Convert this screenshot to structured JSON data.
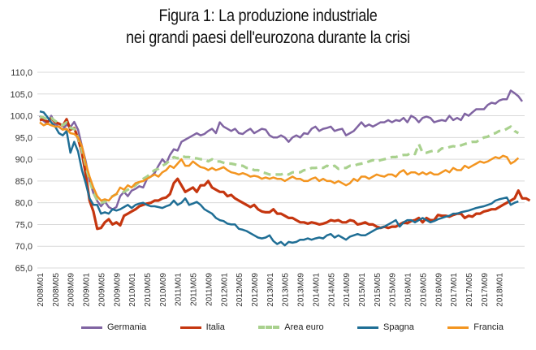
{
  "header": {
    "title_line1": "Figura 1: La produzione industriale",
    "title_line2": "nei grandi paesi dell'eurozona durante la crisi"
  },
  "chart_data": {
    "type": "line",
    "title": "Figura 1: La produzione industriale nei grandi paesi dell'eurozona durante la crisi",
    "xlabel": "",
    "ylabel": "",
    "ylim": [
      65,
      110
    ],
    "yticks": [
      "65,0",
      "70,0",
      "75,0",
      "80,0",
      "85,0",
      "90,0",
      "95,0",
      "100,0",
      "105,0",
      "110,0"
    ],
    "grid": "horizontal",
    "legend_position": "bottom",
    "x_start": "2008M01",
    "x_end": "2018M03",
    "x_tick_labels": [
      "2008M01",
      "2008M05",
      "2008M09",
      "2009M01",
      "2009M05",
      "2009M09",
      "2010M01",
      "2010M05",
      "2010M09",
      "2011M01",
      "2011M05",
      "2011M09",
      "2012M01",
      "2012M05",
      "2012M09",
      "2013M01",
      "2013M05",
      "2013M09",
      "2014M01",
      "2014M05",
      "2014M09",
      "2015M01",
      "2015M05",
      "2015M09",
      "2016M01",
      "2016M05",
      "2016M09",
      "2017M01",
      "2017M05",
      "2017M09",
      "2018M01"
    ],
    "x_tick_index": [
      0,
      4,
      8,
      12,
      16,
      20,
      24,
      28,
      32,
      36,
      40,
      44,
      48,
      52,
      56,
      60,
      64,
      68,
      72,
      76,
      80,
      84,
      88,
      92,
      96,
      100,
      104,
      108,
      112,
      116,
      120
    ],
    "series": [
      {
        "name": "Germania",
        "color": "#8064a2",
        "dash": false,
        "values": [
          100,
          98.8,
          98.2,
          100,
          98.2,
          97.4,
          96.8,
          98,
          97.4,
          98.6,
          96.8,
          93,
          89.5,
          85,
          82.2,
          80.4,
          79.2,
          80.3,
          79,
          78.5,
          79,
          81.5,
          82.5,
          81.5,
          82.8,
          83.2,
          83.8,
          83.5,
          85.5,
          86,
          86.8,
          88.5,
          90,
          89,
          91,
          92.3,
          92,
          94,
          94.5,
          95,
          95.5,
          96,
          95.5,
          95.8,
          96.5,
          97,
          96,
          98.5,
          97.5,
          97,
          96.5,
          97,
          96,
          95.8,
          96.5,
          97,
          96,
          96.5,
          97,
          96.8,
          95.5,
          95,
          95,
          95.5,
          95,
          94,
          95,
          95.5,
          95,
          96,
          95.8,
          97,
          97.5,
          96.5,
          97,
          97.2,
          97.5,
          96.5,
          96.8,
          97,
          95.5,
          96,
          96.5,
          97.5,
          98.5,
          97.5,
          98,
          97.5,
          98,
          98.5,
          98.5,
          99,
          98.5,
          99,
          98.8,
          99.5,
          98.5,
          100,
          99.5,
          98.5,
          99.5,
          99.8,
          99.5,
          98.5,
          98.8,
          99,
          98.8,
          100,
          99,
          99.5,
          99,
          100.5,
          100,
          100.8,
          101.5,
          101.5,
          101.5,
          102.5,
          103,
          102.8,
          103.5,
          103.8,
          103.8,
          105.8,
          105.2,
          104.5,
          103.3
        ]
      },
      {
        "name": "Italia",
        "color": "#c5360f",
        "dash": false,
        "values": [
          99,
          99.2,
          98.6,
          99.4,
          98.5,
          98.2,
          97.7,
          99.2,
          96.8,
          97.2,
          94.8,
          91.5,
          86.5,
          80.5,
          78,
          74,
          74.2,
          75.5,
          76.2,
          75,
          75.5,
          74.8,
          77,
          77.5,
          78,
          78.5,
          79.2,
          79.5,
          79.8,
          80,
          80.5,
          80.5,
          81,
          81.2,
          82,
          84.5,
          85.5,
          84,
          82.5,
          83,
          83.5,
          82.5,
          84,
          84,
          85,
          83.5,
          83,
          82.5,
          82.5,
          81.5,
          81.8,
          81,
          80.5,
          80,
          79.5,
          79,
          79.5,
          78.5,
          78,
          77.8,
          77.8,
          78.5,
          77.5,
          77.5,
          77,
          76.5,
          76.5,
          76,
          75.5,
          75.5,
          75.2,
          75.5,
          75.3,
          75,
          75.2,
          75.5,
          76,
          75.8,
          76,
          75.5,
          75.5,
          76,
          75.8,
          75,
          75.2,
          75.5,
          75,
          75,
          74.5,
          74.2,
          74.5,
          74.2,
          74.5,
          74.5,
          75,
          75.5,
          75.3,
          75.8,
          76,
          76.5,
          75.5,
          76.5,
          76,
          76,
          77.2,
          77,
          77,
          76.8,
          77.2,
          77.5,
          77.5,
          76.5,
          77,
          76.8,
          77.5,
          77.5,
          78,
          78.2,
          78.5,
          78.5,
          79,
          79.5,
          80,
          80.5,
          81,
          82.8,
          81,
          81,
          80.5
        ]
      },
      {
        "name": "Area euro",
        "color": "#a9d18e",
        "dash": true,
        "values": [
          99.8,
          99.6,
          99.1,
          99.5,
          98.8,
          98.2,
          97.8,
          98.5,
          97.2,
          97,
          95,
          92,
          88.5,
          85,
          82.5,
          80.5,
          80,
          80.2,
          81,
          81.5,
          82,
          82.3,
          82.5,
          83,
          83.5,
          84,
          84.8,
          85.5,
          86,
          86.8,
          87.5,
          87.8,
          88.5,
          89,
          89.8,
          90.5,
          90.2,
          90.8,
          90.5,
          90.5,
          90.2,
          90.2,
          90,
          90,
          89.5,
          90,
          89.5,
          89.5,
          89.2,
          89,
          89,
          88.8,
          88.5,
          88.5,
          88,
          88,
          87.5,
          87.5,
          87,
          86.8,
          86.5,
          86.5,
          86.5,
          86.5,
          86.8,
          86.5,
          87,
          87,
          87,
          87.5,
          87.5,
          88,
          88,
          88.2,
          88,
          88.5,
          88.2,
          88.5,
          87.8,
          88,
          88,
          88.5,
          88.5,
          88.8,
          89,
          89.2,
          89.5,
          89.8,
          89.5,
          89.8,
          90,
          90.2,
          90.5,
          90.5,
          90.8,
          91,
          91,
          91.5,
          91.2,
          93.5,
          91.5,
          91.5,
          91.8,
          92,
          91.8,
          92.5,
          92.5,
          92.8,
          93,
          92.8,
          93.2,
          93.5,
          93.8,
          94,
          94,
          94.5,
          95,
          95.2,
          95.8,
          96,
          96.5,
          96.5,
          97,
          97.5,
          96.5,
          96
        ]
      },
      {
        "name": "Spagna",
        "color": "#1f6e95",
        "dash": false,
        "values": [
          101,
          100.8,
          99.7,
          98.5,
          97.5,
          96,
          95.5,
          96.5,
          91.5,
          94,
          91.8,
          87.5,
          84.5,
          81,
          79.5,
          79.5,
          77.5,
          77.8,
          77.5,
          78.5,
          78.2,
          78.5,
          79,
          79.5,
          78.8,
          79.5,
          79.8,
          80,
          79.5,
          79.2,
          79.2,
          79,
          78.8,
          79.2,
          79.5,
          80.5,
          79.5,
          80,
          81,
          79.5,
          79.8,
          80.2,
          79.5,
          78.5,
          78,
          77.5,
          76.5,
          76,
          75.8,
          75.2,
          75,
          75,
          74,
          73.8,
          73.5,
          73,
          72.5,
          72,
          71.8,
          72,
          72.5,
          71.2,
          70.5,
          71,
          70.2,
          71,
          70.8,
          71,
          71.5,
          71.5,
          71.8,
          71.5,
          71.8,
          72,
          71.8,
          72.5,
          72.8,
          72,
          72.5,
          72,
          71.5,
          72.2,
          72.5,
          72.8,
          72.5,
          72.5,
          73,
          73.5,
          74,
          74.2,
          74.5,
          75,
          75.5,
          76,
          74.5,
          75.5,
          76,
          76,
          75.5,
          76,
          76.5,
          76,
          75.5,
          75.8,
          76.2,
          76.5,
          76.8,
          77,
          77.5,
          77.5,
          77.8,
          78,
          78.2,
          78.5,
          78.8,
          79,
          79.2,
          79.5,
          79.8,
          80.5,
          80.8,
          81,
          81.2,
          79.5,
          80,
          80.3
        ]
      },
      {
        "name": "Francia",
        "color": "#f39520",
        "dash": false,
        "values": [
          98.5,
          97.8,
          98.2,
          97.8,
          97.5,
          97.5,
          96.8,
          97,
          96,
          95.8,
          95,
          93,
          89,
          86,
          83.5,
          81.5,
          80.5,
          80.8,
          80.5,
          81.5,
          82,
          83.5,
          83,
          84,
          83.5,
          84.5,
          84.8,
          85,
          85.5,
          86,
          86.5,
          86,
          87,
          87.5,
          88.5,
          88,
          89,
          90,
          88.5,
          88.5,
          89.5,
          88.8,
          88.2,
          88,
          87.5,
          88,
          87.5,
          87.8,
          88.2,
          87.5,
          87,
          86.8,
          86.5,
          86.8,
          86.5,
          86,
          86.2,
          86,
          85.5,
          85.8,
          85.5,
          85.8,
          85.5,
          85.5,
          85,
          85.5,
          86,
          85.5,
          85.5,
          85,
          85,
          85.5,
          85.8,
          85,
          85.5,
          85,
          85,
          84.5,
          85,
          84.5,
          84,
          84.5,
          85.5,
          85,
          86,
          86,
          85.5,
          86,
          86.5,
          86.2,
          86,
          86.5,
          86.5,
          86,
          87,
          87.5,
          86.5,
          87,
          87,
          86.5,
          87,
          86.5,
          87,
          86.5,
          86.5,
          87,
          87.5,
          87,
          88,
          87.5,
          87.5,
          88.5,
          88,
          88.5,
          89,
          89.5,
          89.2,
          89.5,
          90,
          90.5,
          90.2,
          90.8,
          90.5,
          89,
          89.5,
          90.3
        ]
      }
    ]
  }
}
